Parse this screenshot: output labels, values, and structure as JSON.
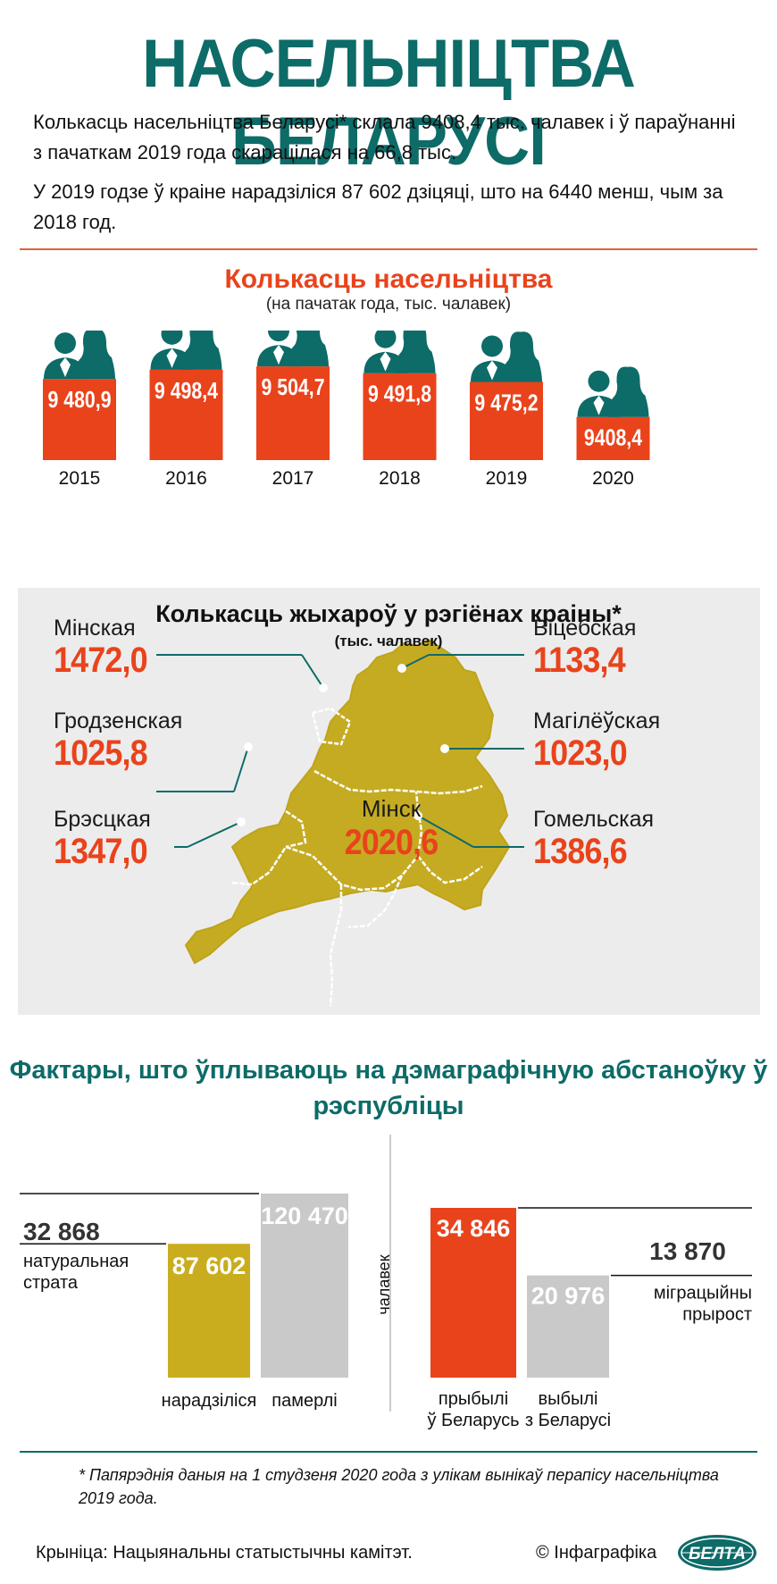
{
  "title": "НАСЕЛЬНІЦТВА БЕЛАРУСІ",
  "intro": [
    "Колькасць насельніцтва Беларусі* склала 9408,4 тыс. чалавек і ў параўнанні з пачаткам 2019 года скарацілася на 66,8 тыс.",
    "У 2019 годзе ў краіне нарадзіліся 87 602 дзіцяці, што на 6440 менш, чым за 2018 год."
  ],
  "colors": {
    "teal": "#0d6b68",
    "orange": "#e9431c",
    "mustard": "#c9ad1e",
    "grey": "#c9c9c9",
    "map_fill": "#c5ab22"
  },
  "chart_data": [
    {
      "type": "bar",
      "title": "Колькасць насельніцтва",
      "subtitle": "(на пачатак года, тыс. чалавек)",
      "categories": [
        "2015",
        "2016",
        "2017",
        "2018",
        "2019",
        "2020"
      ],
      "values": [
        9480.9,
        9498.4,
        9504.7,
        9491.8,
        9475.2,
        9408.4
      ],
      "value_labels": [
        "9 480,9",
        "9 498,4",
        "9 504,7",
        "9 491,8",
        "9 475,2",
        "9408,4"
      ],
      "icon": "people-couple-icon"
    },
    {
      "type": "table",
      "title": "Колькасць жыхароў у рэгіёнах краіны*",
      "subtitle": "(тыс. чалавек)",
      "regions": [
        {
          "name": "Мінская",
          "value": "1472,0"
        },
        {
          "name": "Гродзенская",
          "value": "1025,8"
        },
        {
          "name": "Брэсцкая",
          "value": "1347,0"
        },
        {
          "name": "Віцебская",
          "value": "1133,4"
        },
        {
          "name": "Магілёўская",
          "value": "1023,0"
        },
        {
          "name": "Гомельская",
          "value": "1386,6"
        },
        {
          "name": "Мінск",
          "value": "2020,6"
        }
      ]
    },
    {
      "type": "bar",
      "title": "Фактары, што ўплываюць на дэмаграфічную абстаноўку ў рэспубліцы",
      "ylabel": "чалавек",
      "groups": [
        {
          "bars": [
            {
              "label": "нарадзіліся",
              "value": 87602,
              "value_label": "87 602",
              "color": "#c9ad1e"
            },
            {
              "label": "памерлі",
              "value": 120470,
              "value_label": "120 470",
              "color": "#c9c9c9"
            }
          ],
          "difference": {
            "label": "натуральная страта",
            "value": 32868,
            "value_label": "32 868"
          }
        },
        {
          "bars": [
            {
              "label": "прыбылі ў Беларусь",
              "value": 34846,
              "value_label": "34 846",
              "color": "#e9431c"
            },
            {
              "label": "выбылі з Беларусі",
              "value": 20976,
              "value_label": "20 976",
              "color": "#c9c9c9"
            }
          ],
          "difference": {
            "label": "міграцыйны прырост",
            "value": 13870,
            "value_label": "13 870"
          }
        }
      ]
    }
  ],
  "footnote": "* Папярэднія даныя на 1 студзеня 2020 года з улікам вынікаў перапісу насельніцтва 2019 года.",
  "source": "Крыніца: Нацыянальны статыстычны камітэт.",
  "credit": "© Інфаграфіка",
  "logo_text": "БЕЛТА"
}
